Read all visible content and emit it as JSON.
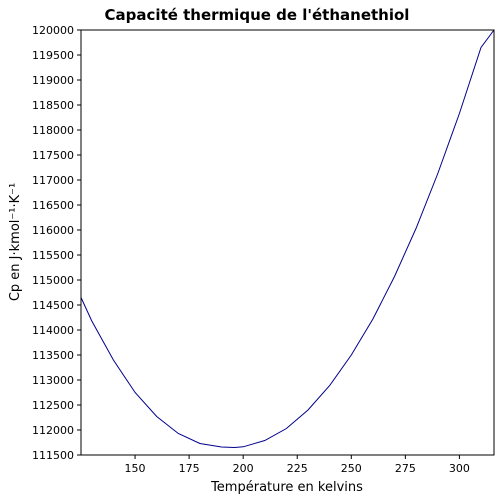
{
  "chart_data": {
    "type": "line",
    "title": "Capacité thermique de l'éthanethiol",
    "xlabel": "Température en kelvins",
    "ylabel": "Cp en J·kmol⁻¹·K⁻¹",
    "xlim": [
      125,
      316
    ],
    "ylim": [
      111500,
      120000
    ],
    "xticks": [
      150,
      175,
      200,
      225,
      250,
      275,
      300
    ],
    "yticks": [
      111500,
      112000,
      112500,
      113000,
      113500,
      114000,
      114500,
      115000,
      115500,
      116000,
      116500,
      117000,
      117500,
      118000,
      118500,
      119000,
      119500,
      120000
    ],
    "grid": false,
    "line_color": "#00008b",
    "series": [
      {
        "x": [
          125,
          130,
          140,
          150,
          160,
          170,
          180,
          190,
          196,
          200,
          210,
          220,
          230,
          240,
          250,
          260,
          270,
          280,
          290,
          300,
          310,
          316
        ],
        "values": [
          114650,
          114180,
          113400,
          112750,
          112270,
          111930,
          111730,
          111660,
          111650,
          111665,
          111790,
          112030,
          112400,
          112890,
          113500,
          114220,
          115070,
          116040,
          117130,
          118330,
          119650,
          120050
        ]
      }
    ]
  }
}
